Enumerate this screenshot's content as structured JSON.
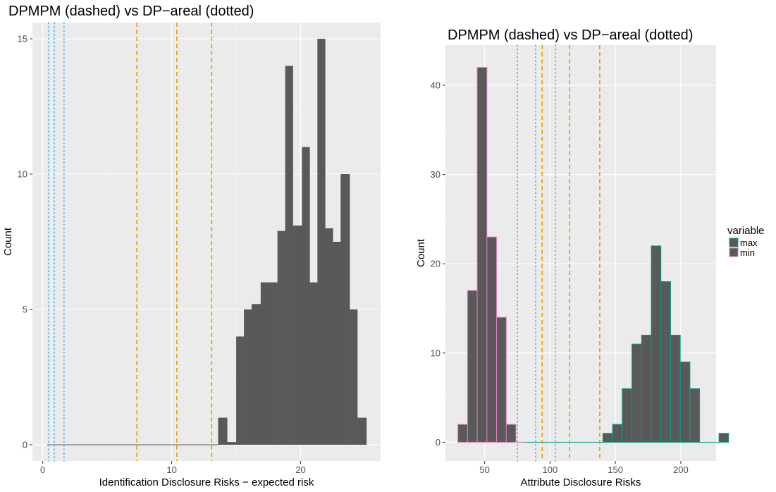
{
  "colors": {
    "panel_bg": "#ebebeb",
    "grid_major": "#ffffff",
    "bar_fill": "#595959",
    "dpmpm_line": "#e69f00",
    "dparea_line": "#56b4e9",
    "max_outline": "#00a087",
    "min_outline": "#e07bc1",
    "tick_text": "#4d4d4d"
  },
  "chart_data": [
    {
      "type": "bar",
      "title": "DPMPM (dashed) vs DP−areal (dotted)",
      "xlabel": "Identification Disclosure Risks − expected risk",
      "ylabel": "Count",
      "xlim": [
        -0.8,
        26.2
      ],
      "ylim": [
        -0.6,
        15.6
      ],
      "xticks": [
        0,
        10,
        20
      ],
      "xtick_labels": [
        "0",
        "10",
        "20"
      ],
      "yticks": [
        0,
        5,
        10,
        15
      ],
      "ytick_labels": [
        "0",
        "5",
        "10",
        "15"
      ],
      "grid": true,
      "bins": [
        {
          "x0": 0.35,
          "x1": 13.6,
          "count": 0
        },
        {
          "x0": 13.6,
          "x1": 14.3,
          "count": 1
        },
        {
          "x0": 14.3,
          "x1": 15.0,
          "count": 0.1
        },
        {
          "x0": 15.0,
          "x1": 15.6,
          "count": 4
        },
        {
          "x0": 15.6,
          "x1": 16.2,
          "count": 5
        },
        {
          "x0": 16.2,
          "x1": 16.9,
          "count": 5.2
        },
        {
          "x0": 16.9,
          "x1": 17.5,
          "count": 6
        },
        {
          "x0": 17.5,
          "x1": 18.2,
          "count": 6
        },
        {
          "x0": 18.2,
          "x1": 18.8,
          "count": 7.9
        },
        {
          "x0": 18.8,
          "x1": 19.4,
          "count": 14
        },
        {
          "x0": 19.4,
          "x1": 20.1,
          "count": 8.1
        },
        {
          "x0": 20.1,
          "x1": 20.7,
          "count": 11
        },
        {
          "x0": 20.7,
          "x1": 21.3,
          "count": 6
        },
        {
          "x0": 21.3,
          "x1": 21.9,
          "count": 15
        },
        {
          "x0": 21.9,
          "x1": 22.5,
          "count": 8
        },
        {
          "x0": 22.5,
          "x1": 23.1,
          "count": 7.5
        },
        {
          "x0": 23.1,
          "x1": 23.8,
          "count": 10
        },
        {
          "x0": 23.8,
          "x1": 24.4,
          "count": 5
        },
        {
          "x0": 24.4,
          "x1": 25.1,
          "count": 1
        }
      ],
      "vlines_dpmpm": [
        7.3,
        10.4,
        13.1
      ],
      "vlines_dparea": [
        0.45,
        0.9,
        1.65
      ]
    },
    {
      "type": "bar",
      "title": "DPMPM (dashed) vs DP−areal (dotted)",
      "xlabel": "Attribute Disclosure Risks",
      "ylabel": "Count",
      "xlim": [
        20,
        227
      ],
      "ylim": [
        -2.1,
        44.5
      ],
      "xticks": [
        50,
        100,
        150,
        200
      ],
      "xtick_labels": [
        "50",
        "100",
        "150",
        "200"
      ],
      "yticks": [
        0,
        10,
        20,
        30,
        40
      ],
      "ytick_labels": [
        "0",
        "10",
        "20",
        "30",
        "40"
      ],
      "grid": true,
      "legend": {
        "title": "variable",
        "position": "right",
        "entries": [
          {
            "label": "max",
            "key": "max"
          },
          {
            "label": "min",
            "key": "min"
          }
        ]
      },
      "series": [
        {
          "name": "max",
          "bin_start": 59,
          "bin_width": 7.4,
          "counts": [
            0,
            0,
            0,
            0,
            0,
            0,
            0,
            0,
            0,
            0,
            0,
            1,
            2,
            6,
            11,
            12,
            22,
            18,
            12,
            9,
            6,
            0,
            0,
            1
          ]
        },
        {
          "name": "min",
          "bin_start": 29.5,
          "bin_width": 7.4,
          "counts": [
            2,
            17,
            42,
            23,
            14,
            2,
            0
          ]
        }
      ],
      "vlines_dpmpm": [
        94,
        115,
        138
      ],
      "vlines_dparea": [
        75,
        89,
        104
      ]
    }
  ]
}
